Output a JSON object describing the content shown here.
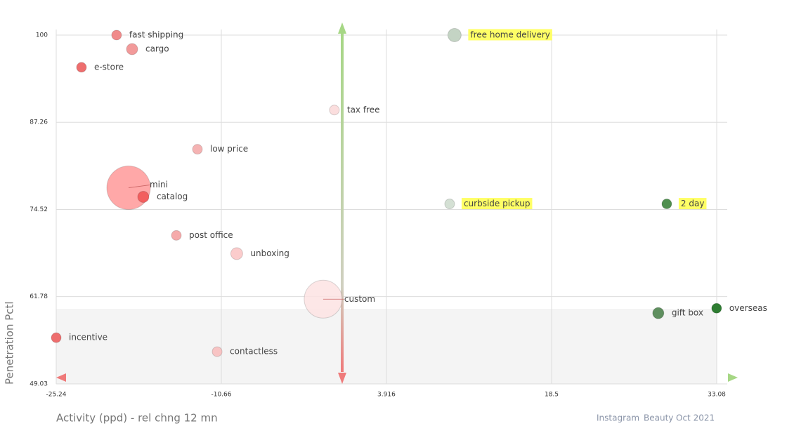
{
  "chart_data": {
    "type": "scatter",
    "x_label": "Activity (ppd) - rel chng 12 mn",
    "y_label": "Penetration Pctl",
    "footer": [
      "Instagram",
      "Beauty",
      "Oct 2021"
    ],
    "xlim": [
      -25.24,
      34.01
    ],
    "ylim": [
      49.03,
      100
    ],
    "xticks": [
      -25.24,
      -10.66,
      3.916,
      18.5,
      33.08
    ],
    "yticks": [
      49.03,
      61.78,
      74.52,
      87.26,
      100
    ],
    "grid": true,
    "shade_ylim": [
      49.03,
      60
    ],
    "labels": [
      "fast shipping",
      "cargo",
      "e-store",
      "tax free",
      "low price",
      "mini",
      "catalog",
      "post office",
      "unboxing",
      "custom",
      "incentive",
      "contactless",
      "free home delivery",
      "curbside pickup",
      "2 day",
      "gift box",
      "overseas"
    ],
    "x": [
      -19.91,
      -18.54,
      -23.01,
      -0.68,
      -12.77,
      -18.85,
      -17.55,
      -14.63,
      -9.3,
      -1.67,
      -25.24,
      -11.03,
      9.93,
      9.5,
      28.67,
      27.92,
      33.07
    ],
    "y": [
      100,
      97.95,
      95.29,
      89.05,
      83.32,
      77.69,
      76.36,
      70.73,
      68.07,
      61.41,
      55.78,
      53.74,
      100,
      75.33,
      75.33,
      59.37,
      60.08
    ],
    "sizes": [
      7,
      8,
      7,
      7,
      7,
      31,
      8,
      7,
      8.5,
      27,
      7,
      7,
      9.5,
      7,
      7,
      8,
      7
    ],
    "colors": [
      "#f08a8a",
      "#f29a9a",
      "#ee6e6e",
      "#fbdede",
      "#f5b3b3",
      "#ff9999",
      "#f25f5f",
      "#f5aaaa",
      "#fbcccc",
      "#fde3e3",
      "#ee6e6e",
      "#f8c4c4",
      "#c4d4c4",
      "#d4e0d4",
      "#4f8f4f",
      "#5f8f5f",
      "#2e7d32"
    ],
    "highlight": [
      false,
      false,
      false,
      false,
      false,
      false,
      false,
      false,
      false,
      false,
      false,
      false,
      true,
      true,
      true,
      false,
      false
    ]
  }
}
